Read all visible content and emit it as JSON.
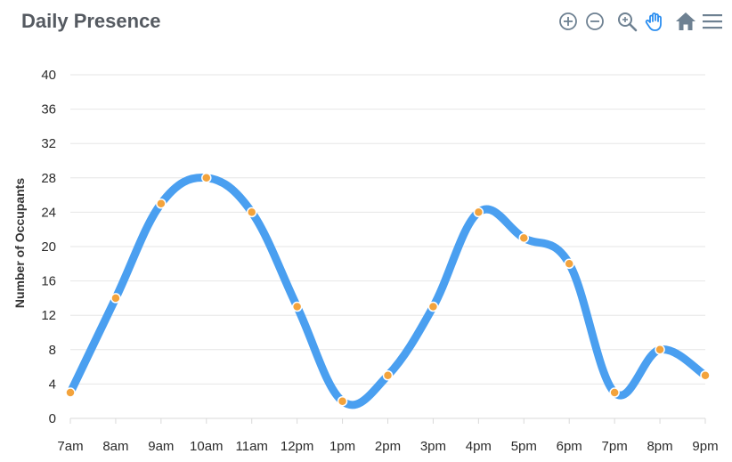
{
  "title": "Daily Presence",
  "toolbar": {
    "icons": [
      "zoom-in-icon",
      "zoom-out-icon",
      "zoom-selection-icon",
      "pan-hand-icon",
      "home-reset-icon",
      "menu-icon"
    ],
    "accent": "#2b8ef0",
    "icon_color": "#6e8192"
  },
  "colors": {
    "line": "#4a9ff0",
    "marker": "#f3a33c",
    "grid": "#e6e6e6"
  },
  "chart_data": {
    "type": "line",
    "title": "Daily Presence",
    "xlabel": "",
    "ylabel": "Number of Occupants",
    "categories": [
      "7am",
      "8am",
      "9am",
      "10am",
      "11am",
      "12pm",
      "1pm",
      "2pm",
      "3pm",
      "4pm",
      "5pm",
      "6pm",
      "7pm",
      "8pm",
      "9pm"
    ],
    "values": [
      3,
      14,
      25,
      28,
      24,
      13,
      2,
      5,
      13,
      24,
      21,
      18,
      3,
      8,
      5
    ],
    "ylim": [
      0,
      40
    ],
    "yticks": [
      0,
      4,
      8,
      12,
      16,
      20,
      24,
      28,
      32,
      36,
      40
    ],
    "grid": true,
    "smooth": true,
    "legend": "none"
  }
}
